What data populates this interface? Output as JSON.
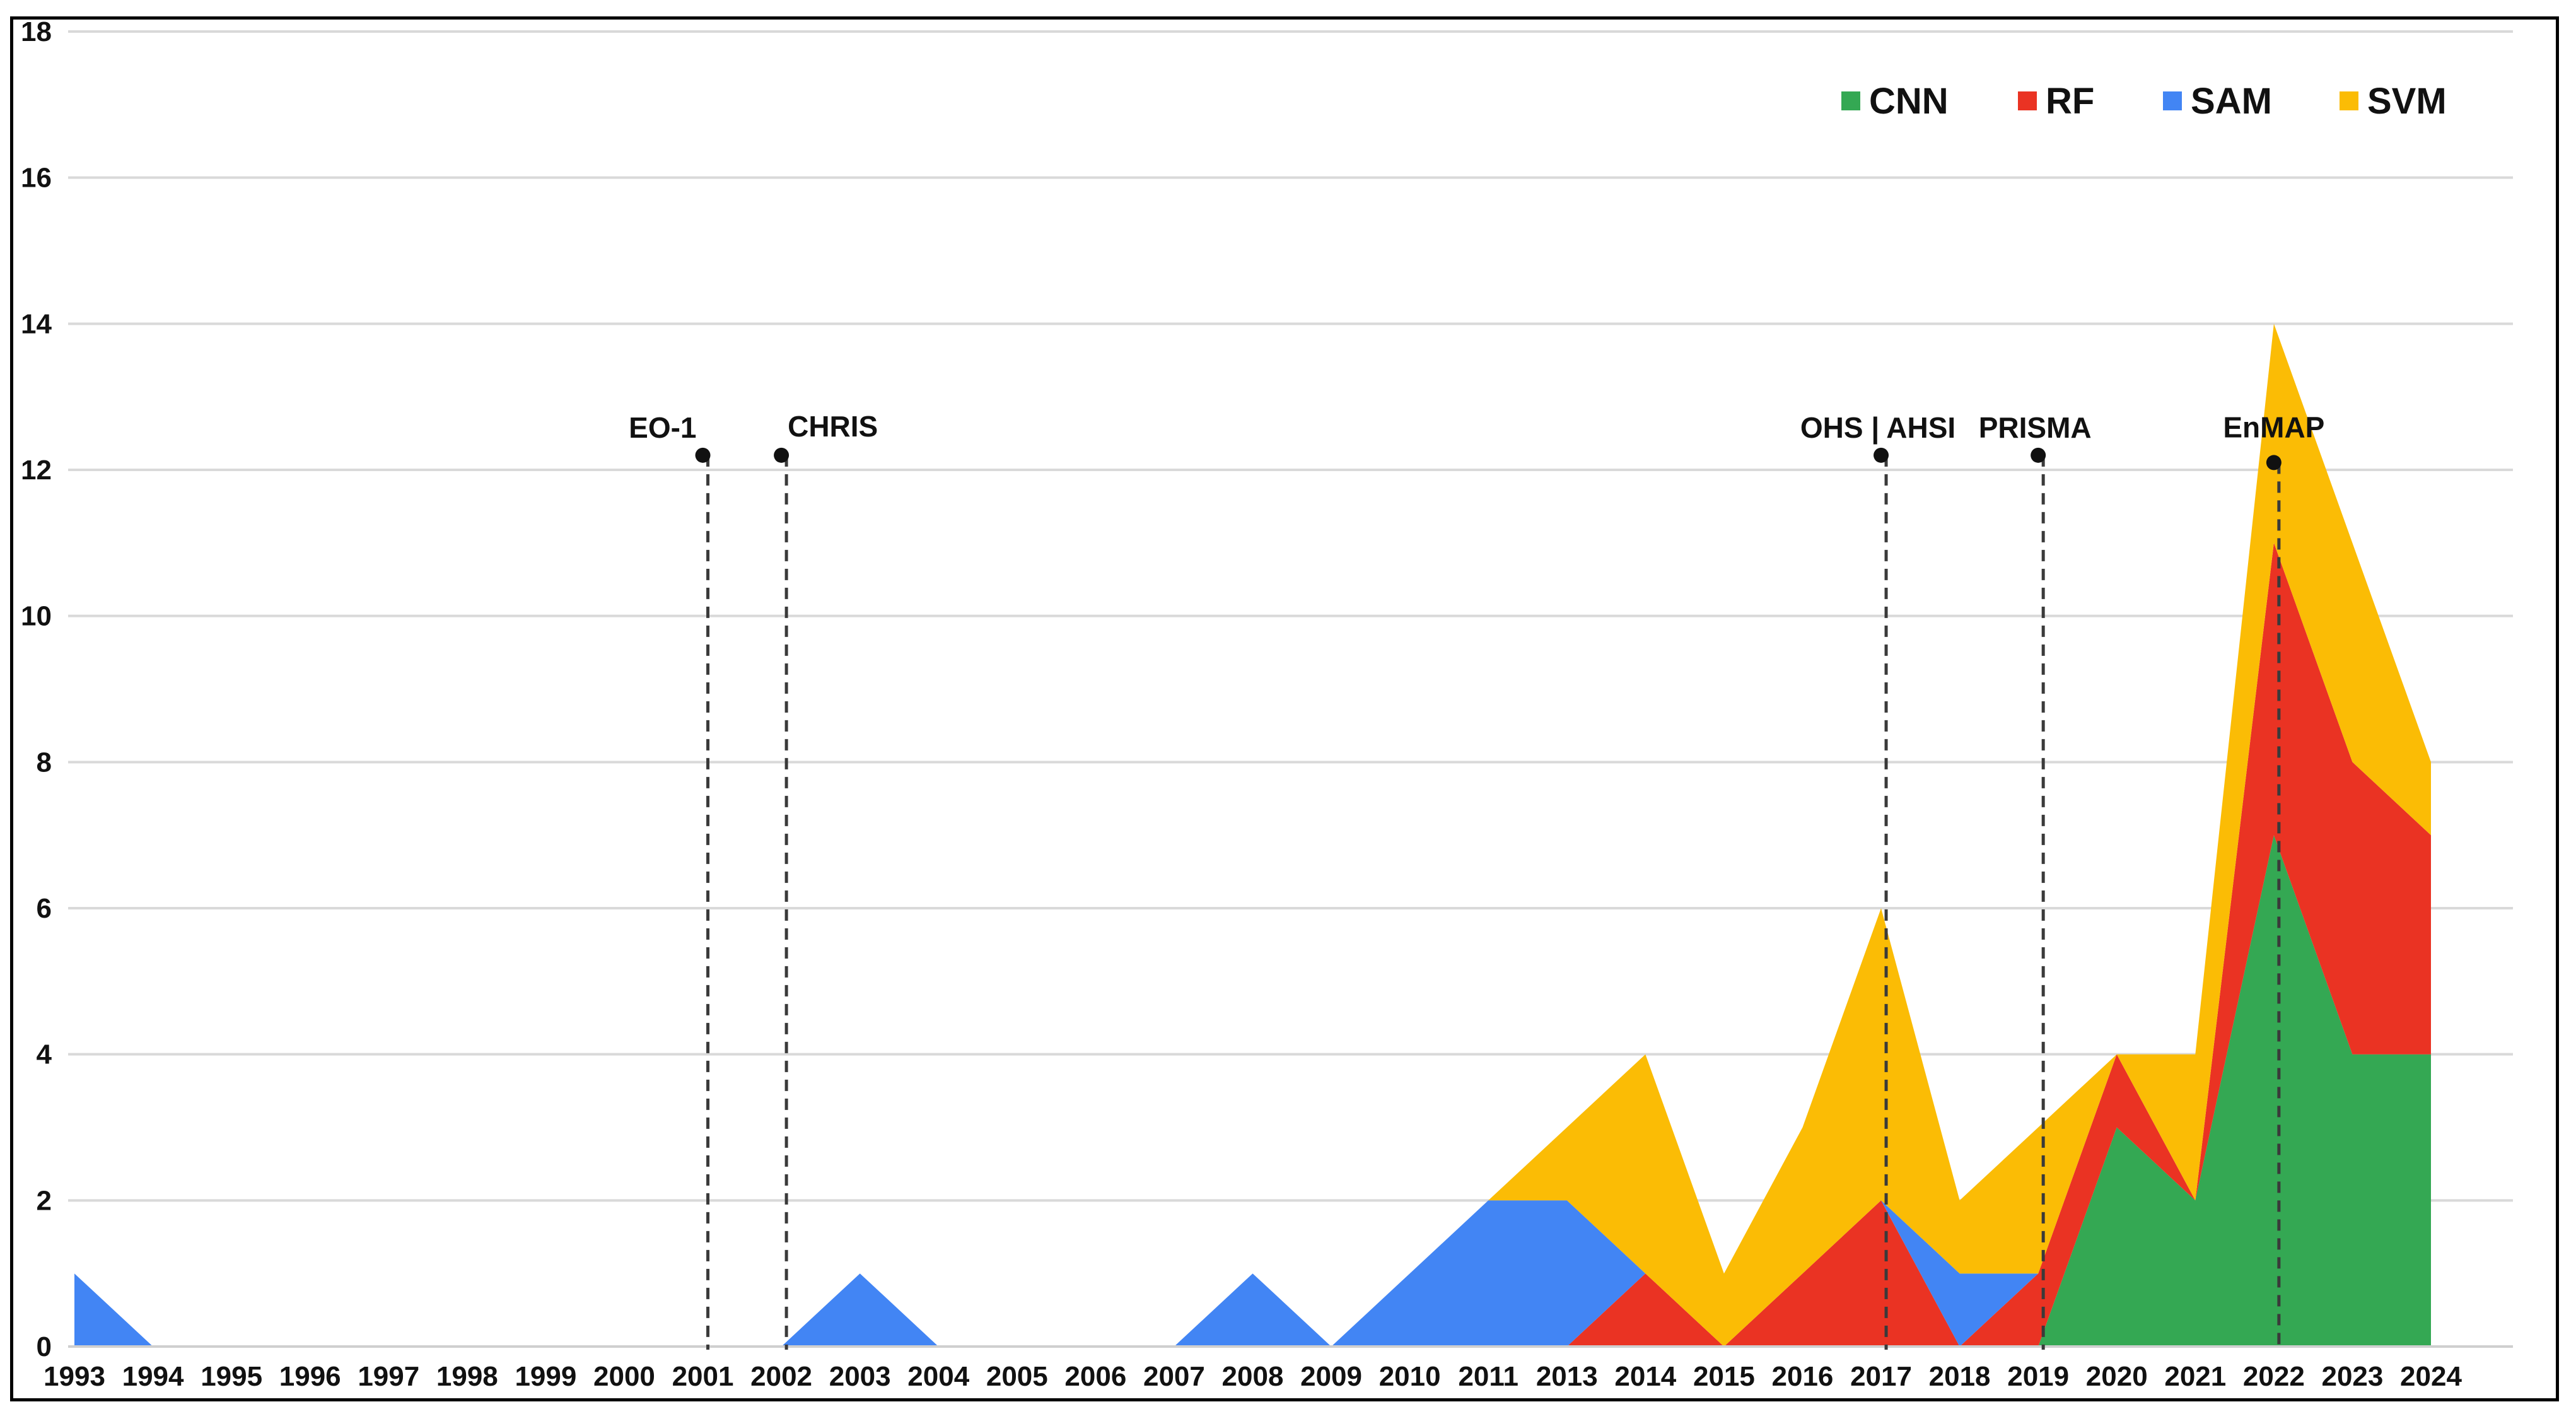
{
  "chart_data": {
    "type": "area",
    "stacked": true,
    "title": "",
    "xlabel": "",
    "ylabel": "",
    "ylim": [
      0,
      18
    ],
    "y_ticks": [
      0,
      2,
      4,
      6,
      8,
      10,
      12,
      14,
      16,
      18
    ],
    "grid": "horizontal",
    "legend_position": "top-right",
    "categories": [
      "1993",
      "1994",
      "1995",
      "1996",
      "1997",
      "1998",
      "1999",
      "2000",
      "2001",
      "2002",
      "2003",
      "2004",
      "2005",
      "2006",
      "2007",
      "2008",
      "2009",
      "2010",
      "2011",
      "2013",
      "2014",
      "2015",
      "2016",
      "2017",
      "2018",
      "2019",
      "2020",
      "2021",
      "2022",
      "2023",
      "2024"
    ],
    "series": [
      {
        "name": "CNN",
        "color": "#34a853",
        "values": [
          0,
          0,
          0,
          0,
          0,
          0,
          0,
          0,
          0,
          0,
          0,
          0,
          0,
          0,
          0,
          0,
          0,
          0,
          0,
          0,
          0,
          0,
          0,
          0,
          0,
          0,
          3,
          2,
          7,
          4,
          4
        ]
      },
      {
        "name": "RF",
        "color": "#ea3323",
        "values": [
          0,
          0,
          0,
          0,
          0,
          0,
          0,
          0,
          0,
          0,
          0,
          0,
          0,
          0,
          0,
          0,
          0,
          0,
          0,
          0,
          1,
          0,
          1,
          2,
          0,
          1,
          1,
          0,
          4,
          4,
          3
        ]
      },
      {
        "name": "SAM",
        "color": "#4285f4",
        "values": [
          1,
          0,
          0,
          0,
          0,
          0,
          0,
          0,
          0,
          0,
          1,
          0,
          0,
          0,
          0,
          1,
          0,
          1,
          2,
          2,
          0,
          0,
          0,
          0,
          1,
          0,
          0,
          0,
          0,
          0,
          0
        ]
      },
      {
        "name": "SVM",
        "color": "#fbbc05",
        "values": [
          0,
          0,
          0,
          0,
          0,
          0,
          0,
          0,
          0,
          0,
          0,
          0,
          0,
          0,
          0,
          0,
          0,
          0,
          0,
          1,
          3,
          1,
          2,
          4,
          1,
          2,
          0,
          2,
          3,
          3,
          1
        ]
      }
    ],
    "annotations": [
      {
        "label": "EO-1",
        "x": "2001",
        "y": 12.2
      },
      {
        "label": "CHRIS",
        "x": "2002",
        "y": 12.2
      },
      {
        "label": "OHS | AHSI",
        "x": "2017",
        "y": 12.2
      },
      {
        "label": "PRISMA",
        "x": "2019",
        "y": 12.2
      },
      {
        "label": "EnMAP",
        "x": "2022",
        "y": 12.1
      }
    ]
  }
}
